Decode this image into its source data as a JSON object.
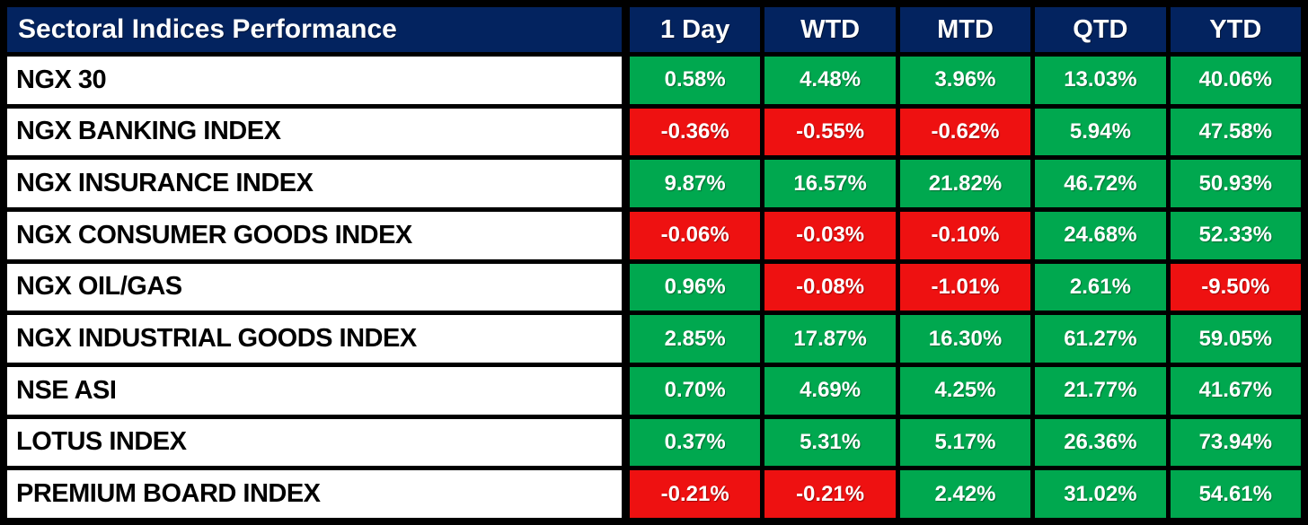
{
  "table": {
    "title": "Sectoral Indices Performance",
    "columns": [
      "1 Day",
      "WTD",
      "MTD",
      "QTD",
      "YTD"
    ],
    "rows": [
      {
        "label": "NGX 30",
        "values": [
          {
            "text": "0.58%",
            "direction": "up"
          },
          {
            "text": "4.48%",
            "direction": "up"
          },
          {
            "text": "3.96%",
            "direction": "up"
          },
          {
            "text": "13.03%",
            "direction": "up"
          },
          {
            "text": "40.06%",
            "direction": "up"
          }
        ]
      },
      {
        "label": "NGX BANKING INDEX",
        "values": [
          {
            "text": "-0.36%",
            "direction": "down"
          },
          {
            "text": "-0.55%",
            "direction": "down"
          },
          {
            "text": "-0.62%",
            "direction": "down"
          },
          {
            "text": "5.94%",
            "direction": "up"
          },
          {
            "text": "47.58%",
            "direction": "up"
          }
        ]
      },
      {
        "label": "NGX INSURANCE INDEX",
        "values": [
          {
            "text": "9.87%",
            "direction": "up"
          },
          {
            "text": "16.57%",
            "direction": "up"
          },
          {
            "text": "21.82%",
            "direction": "up"
          },
          {
            "text": "46.72%",
            "direction": "up"
          },
          {
            "text": "50.93%",
            "direction": "up"
          }
        ]
      },
      {
        "label": "NGX CONSUMER GOODS INDEX",
        "values": [
          {
            "text": "-0.06%",
            "direction": "down"
          },
          {
            "text": "-0.03%",
            "direction": "down"
          },
          {
            "text": "-0.10%",
            "direction": "down"
          },
          {
            "text": "24.68%",
            "direction": "up"
          },
          {
            "text": "52.33%",
            "direction": "up"
          }
        ]
      },
      {
        "label": "NGX OIL/GAS",
        "values": [
          {
            "text": "0.96%",
            "direction": "up"
          },
          {
            "text": "-0.08%",
            "direction": "down"
          },
          {
            "text": "-1.01%",
            "direction": "down"
          },
          {
            "text": "2.61%",
            "direction": "up"
          },
          {
            "text": "-9.50%",
            "direction": "down"
          }
        ]
      },
      {
        "label": "NGX INDUSTRIAL GOODS INDEX",
        "values": [
          {
            "text": "2.85%",
            "direction": "up"
          },
          {
            "text": "17.87%",
            "direction": "up"
          },
          {
            "text": "16.30%",
            "direction": "up"
          },
          {
            "text": "61.27%",
            "direction": "up"
          },
          {
            "text": "59.05%",
            "direction": "up"
          }
        ]
      },
      {
        "label": "NSE ASI",
        "values": [
          {
            "text": "0.70%",
            "direction": "up"
          },
          {
            "text": "4.69%",
            "direction": "up"
          },
          {
            "text": "4.25%",
            "direction": "up"
          },
          {
            "text": "21.77%",
            "direction": "up"
          },
          {
            "text": "41.67%",
            "direction": "up"
          }
        ]
      },
      {
        "label": "LOTUS INDEX",
        "values": [
          {
            "text": "0.37%",
            "direction": "up"
          },
          {
            "text": "5.31%",
            "direction": "up"
          },
          {
            "text": "5.17%",
            "direction": "up"
          },
          {
            "text": "26.36%",
            "direction": "up"
          },
          {
            "text": "73.94%",
            "direction": "up"
          }
        ]
      },
      {
        "label": "PREMIUM BOARD INDEX",
        "values": [
          {
            "text": "-0.21%",
            "direction": "down"
          },
          {
            "text": "-0.21%",
            "direction": "down"
          },
          {
            "text": "2.42%",
            "direction": "up"
          },
          {
            "text": "31.02%",
            "direction": "up"
          },
          {
            "text": "54.61%",
            "direction": "up"
          }
        ]
      }
    ],
    "colors": {
      "header_bg": "#03235F",
      "header_text": "#FFFFFF",
      "positive_bg": "#00A84F",
      "negative_bg": "#EE1111",
      "value_text": "#FFFFFF",
      "label_bg": "#FFFFFF",
      "label_text": "#000000",
      "grid": "#000000"
    }
  },
  "chart_data": {
    "type": "table",
    "title": "Sectoral Indices Performance",
    "columns": [
      "1 Day",
      "WTD",
      "MTD",
      "QTD",
      "YTD"
    ],
    "unit": "%",
    "series": [
      {
        "name": "NGX 30",
        "values": [
          0.58,
          4.48,
          3.96,
          13.03,
          40.06
        ]
      },
      {
        "name": "NGX BANKING INDEX",
        "values": [
          -0.36,
          -0.55,
          -0.62,
          5.94,
          47.58
        ]
      },
      {
        "name": "NGX INSURANCE INDEX",
        "values": [
          9.87,
          16.57,
          21.82,
          46.72,
          50.93
        ]
      },
      {
        "name": "NGX CONSUMER GOODS INDEX",
        "values": [
          -0.06,
          -0.03,
          -0.1,
          24.68,
          52.33
        ]
      },
      {
        "name": "NGX OIL/GAS",
        "values": [
          0.96,
          -0.08,
          -1.01,
          2.61,
          -9.5
        ]
      },
      {
        "name": "NGX INDUSTRIAL GOODS INDEX",
        "values": [
          2.85,
          17.87,
          16.3,
          61.27,
          59.05
        ]
      },
      {
        "name": "NSE ASI",
        "values": [
          0.7,
          4.69,
          4.25,
          21.77,
          41.67
        ]
      },
      {
        "name": "LOTUS INDEX",
        "values": [
          0.37,
          5.31,
          5.17,
          26.36,
          73.94
        ]
      },
      {
        "name": "PREMIUM BOARD INDEX",
        "values": [
          -0.21,
          -0.21,
          2.42,
          31.02,
          54.61
        ]
      }
    ],
    "color_coding": {
      "positive": "green",
      "negative": "red"
    },
    "legend_position": "none",
    "grid": true
  }
}
